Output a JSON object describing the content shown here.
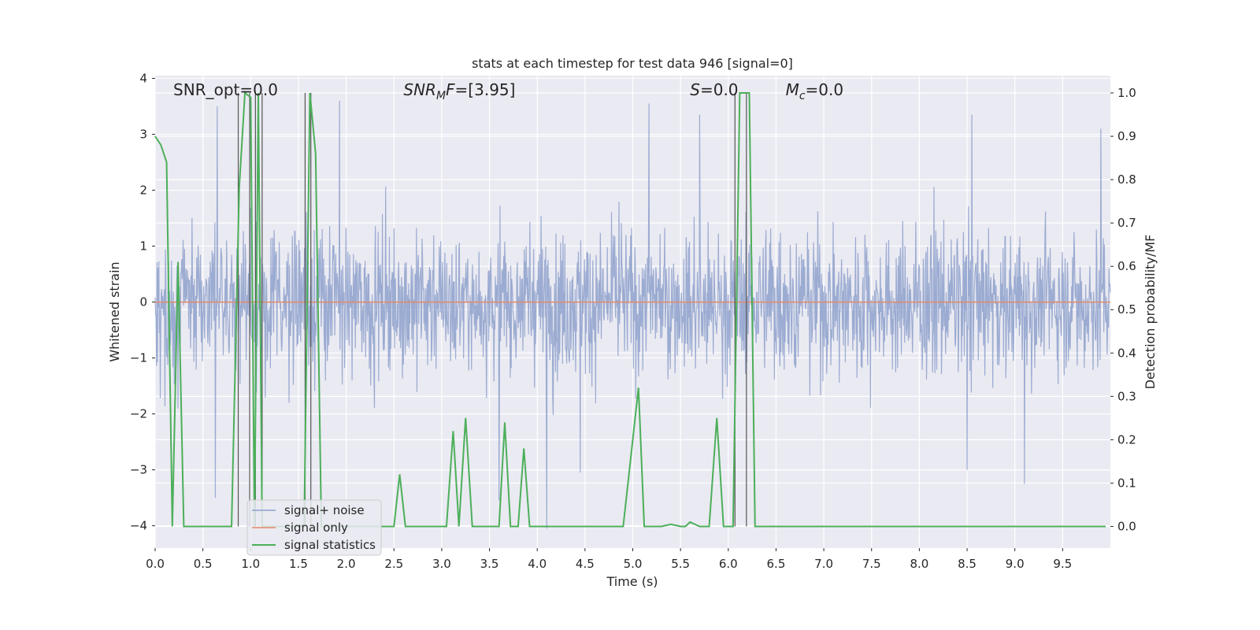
{
  "chart_data": {
    "type": "line",
    "title": "stats at each timestep for test data 946 [signal=0]",
    "xlabel": "Time (s)",
    "ylabel_left": "Whitened strain",
    "ylabel_right": "Detection probability/MF",
    "xlim": [
      0,
      10
    ],
    "ylim_left": [
      -4.4,
      4.05
    ],
    "ylim_right": [
      -0.05,
      1.04
    ],
    "x_ticks": [
      0.0,
      0.5,
      1.0,
      1.5,
      2.0,
      2.5,
      3.0,
      3.5,
      4.0,
      4.5,
      5.0,
      5.5,
      6.0,
      6.5,
      7.0,
      7.5,
      8.0,
      8.5,
      9.0,
      9.5
    ],
    "x_tick_labels": [
      "0.0",
      "0.5",
      "1.0",
      "1.5",
      "2.0",
      "2.5",
      "3.0",
      "3.5",
      "4.0",
      "4.5",
      "5.0",
      "5.5",
      "6.0",
      "6.5",
      "7.0",
      "7.5",
      "8.0",
      "8.5",
      "9.0",
      "9.5"
    ],
    "y_left_ticks": [
      4,
      3,
      2,
      1,
      0,
      -1,
      -2,
      -3,
      -4
    ],
    "y_left_tick_labels": [
      "4",
      "3",
      "2",
      "1",
      "0",
      "−1",
      "−2",
      "−3",
      "−4"
    ],
    "y_right_ticks": [
      1.0,
      0.9,
      0.8,
      0.7,
      0.6,
      0.5,
      0.4,
      0.3,
      0.2,
      0.1,
      0.0
    ],
    "y_right_tick_labels": [
      "1.0",
      "0.9",
      "0.8",
      "0.7",
      "0.6",
      "0.5",
      "0.4",
      "0.3",
      "0.2",
      "0.1",
      "0.0"
    ],
    "grid": true,
    "legend_position": "lower-left",
    "annotations": [
      {
        "text": "SNR_opt=0.0",
        "x": 0.19
      },
      {
        "text": "SNR_MF=[3.95]",
        "x": 2.6
      },
      {
        "text": "S=0.0",
        "x": 5.6
      },
      {
        "text": "M_c=0.0",
        "x": 6.6
      }
    ],
    "noise_series": {
      "name": "signal+ noise",
      "color": "#8da0cb",
      "sample_count": 2048,
      "envelope_low": -2.2,
      "envelope_high": 2.2,
      "notable_peaks": [
        {
          "x": 0.65,
          "y": 3.5
        },
        {
          "x": 1.93,
          "y": 3.6
        },
        {
          "x": 5.17,
          "y": 3.55
        },
        {
          "x": 5.7,
          "y": 3.35
        },
        {
          "x": 8.55,
          "y": 3.35
        },
        {
          "x": 9.9,
          "y": 3.1
        },
        {
          "x": 0.63,
          "y": -3.5
        },
        {
          "x": 3.6,
          "y": -3.55
        },
        {
          "x": 4.1,
          "y": -4.05
        },
        {
          "x": 9.1,
          "y": -3.25
        },
        {
          "x": 8.5,
          "y": -3.0
        },
        {
          "x": 4.45,
          "y": -3.05
        }
      ]
    },
    "signal_only": {
      "name": "signal only",
      "color": "#e28a6a",
      "value": 0.0
    },
    "statistics_series": {
      "name": "signal statistics",
      "color": "#4caf5a",
      "x": [
        0.0,
        0.06,
        0.12,
        0.18,
        0.24,
        0.3,
        0.8,
        0.88,
        0.94,
        1.0,
        1.04,
        1.08,
        1.12,
        1.16,
        1.2,
        1.5,
        1.56,
        1.62,
        1.68,
        1.74,
        2.5,
        2.56,
        2.62,
        3.05,
        3.12,
        3.18,
        3.25,
        3.32,
        3.4,
        3.6,
        3.66,
        3.72,
        3.8,
        3.86,
        3.92,
        4.9,
        5.06,
        5.12,
        5.3,
        5.4,
        5.5,
        5.55,
        5.6,
        5.7,
        5.8,
        5.88,
        5.95,
        6.05,
        6.12,
        6.18,
        6.22,
        6.28,
        9.95
      ],
      "values": [
        0.9,
        0.88,
        0.84,
        0.0,
        0.61,
        0.0,
        0.0,
        0.78,
        1.0,
        0.99,
        0.0,
        1.0,
        0.0,
        0.0,
        0.0,
        0.0,
        0.0,
        1.0,
        0.86,
        0.0,
        0.0,
        0.12,
        0.0,
        0.0,
        0.22,
        0.0,
        0.25,
        0.0,
        0.0,
        0.0,
        0.24,
        0.0,
        0.0,
        0.18,
        0.0,
        0.0,
        0.32,
        0.0,
        0.0,
        0.005,
        0.0,
        0.0,
        0.01,
        0.0,
        0.0,
        0.25,
        0.0,
        0.0,
        1.0,
        1.0,
        1.0,
        0.0,
        0.0
      ]
    },
    "vertical_markers_x": [
      0.87,
      0.99,
      1.05,
      1.12,
      1.57,
      1.63,
      6.07,
      6.19
    ],
    "legend": [
      "signal+ noise",
      "signal only",
      "signal statistics"
    ]
  }
}
